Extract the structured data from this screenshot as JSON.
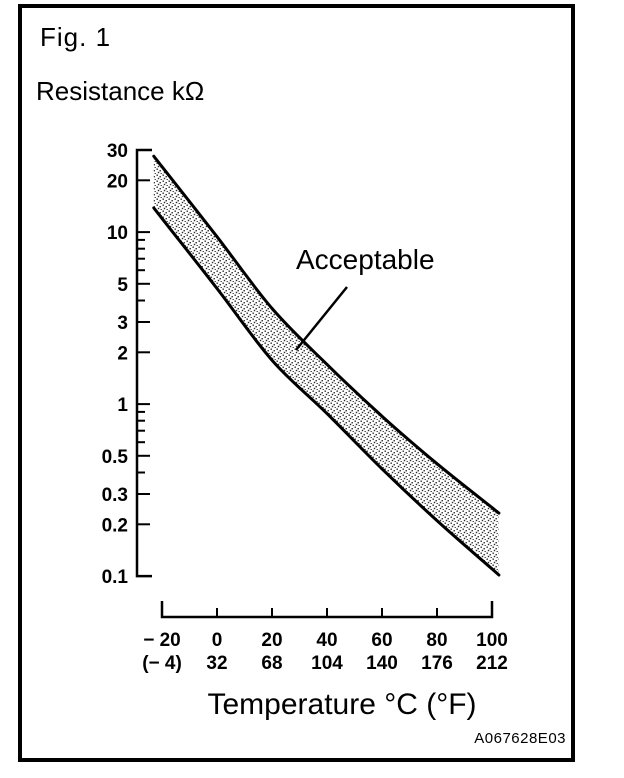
{
  "figure": {
    "label": "Fig. 1",
    "code": "A067628E03"
  },
  "chart_data": {
    "type": "area",
    "title": "Fig. 1",
    "ylabel": "Resistance kΩ",
    "xlabel": "Temperature °C (°F)",
    "annotation": "Acceptable",
    "y_axis": {
      "scale": "log",
      "range": [
        0.1,
        30
      ],
      "tick_values": [
        30,
        20,
        10,
        5,
        3,
        2,
        1,
        0.5,
        0.3,
        0.2,
        0.1
      ],
      "tick_labels": [
        "30",
        "20",
        "10",
        "5",
        "3",
        "2",
        "1",
        "0.5",
        "0.3",
        "0.2",
        "0.1"
      ],
      "minor_tick_values": [
        9,
        8,
        7,
        6,
        4,
        0.9,
        0.8,
        0.7,
        0.6,
        0.4
      ]
    },
    "x_axis": {
      "scale": "linear",
      "range": [
        -20,
        100
      ],
      "celsius_labels": [
        "− 20",
        "0",
        "20",
        "40",
        "60",
        "80",
        "100"
      ],
      "fahrenheit_labels": [
        "(− 4)",
        "32",
        "68",
        "104",
        "140",
        "176",
        "212"
      ]
    },
    "x_c": [
      -20,
      0,
      20,
      40,
      60,
      80,
      100
    ],
    "series": [
      {
        "name": "upper_limit_kohm",
        "values": [
          24,
          9.4,
          3.6,
          1.7,
          0.85,
          0.45,
          0.25
        ]
      },
      {
        "name": "lower_limit_kohm",
        "values": [
          12,
          4.7,
          1.8,
          0.88,
          0.42,
          0.21,
          0.11
        ]
      }
    ],
    "legend": "none",
    "grid": false
  },
  "colors": {
    "ink": "#000000",
    "background": "#ffffff",
    "stipple_dot": "#2a2a2a"
  }
}
